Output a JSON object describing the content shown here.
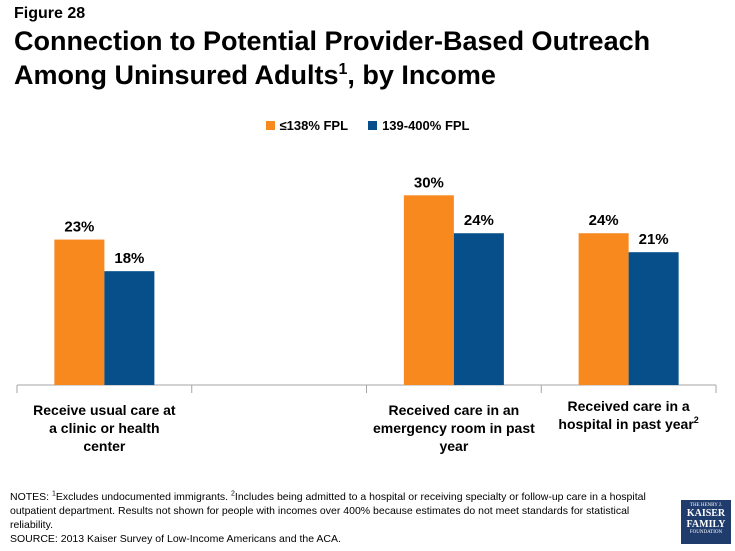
{
  "figure_label": "Figure 28",
  "title_main": "Connection to Potential Provider-Based Outreach Among Uninsured Adults",
  "title_sup": "1",
  "title_tail": ", by Income",
  "chart_data": {
    "type": "bar",
    "categories": [
      "Receive usual care at a clinic or health center",
      "",
      "Received care in an emergency room in past year",
      "Received care in a hospital in past year"
    ],
    "category_footnotes": [
      "",
      "",
      "",
      "2"
    ],
    "series": [
      {
        "name": "≤138% FPL",
        "values": [
          23,
          null,
          30,
          24
        ],
        "labels": [
          "23%",
          "",
          "30%",
          "24%"
        ],
        "color": "#f7891f"
      },
      {
        "name": "139-400% FPL",
        "values": [
          18,
          null,
          24,
          21
        ],
        "labels": [
          "18%",
          "",
          "24%",
          "21%"
        ],
        "color": "#064f8a"
      }
    ],
    "ylim": [
      0,
      34
    ],
    "legend_position": "top-center"
  },
  "notes": {
    "prefix": "NOTES: ",
    "fn1_mark": "1",
    "fn1_text": "Excludes undocumented immigrants.  ",
    "fn2_mark": "2",
    "fn2_text": "Includes being admitted to a hospital or receiving specialty or follow-up care in a hospital outpatient department. Results not shown for people with incomes over 400% because estimates do not meet standards for statistical reliability.",
    "source": "SOURCE: 2013 Kaiser Survey of Low-Income Americans and the ACA."
  },
  "logo": {
    "line1": "THE HENRY J.",
    "line2": "KAISER",
    "line3": "FAMILY",
    "line4": "FOUNDATION"
  }
}
